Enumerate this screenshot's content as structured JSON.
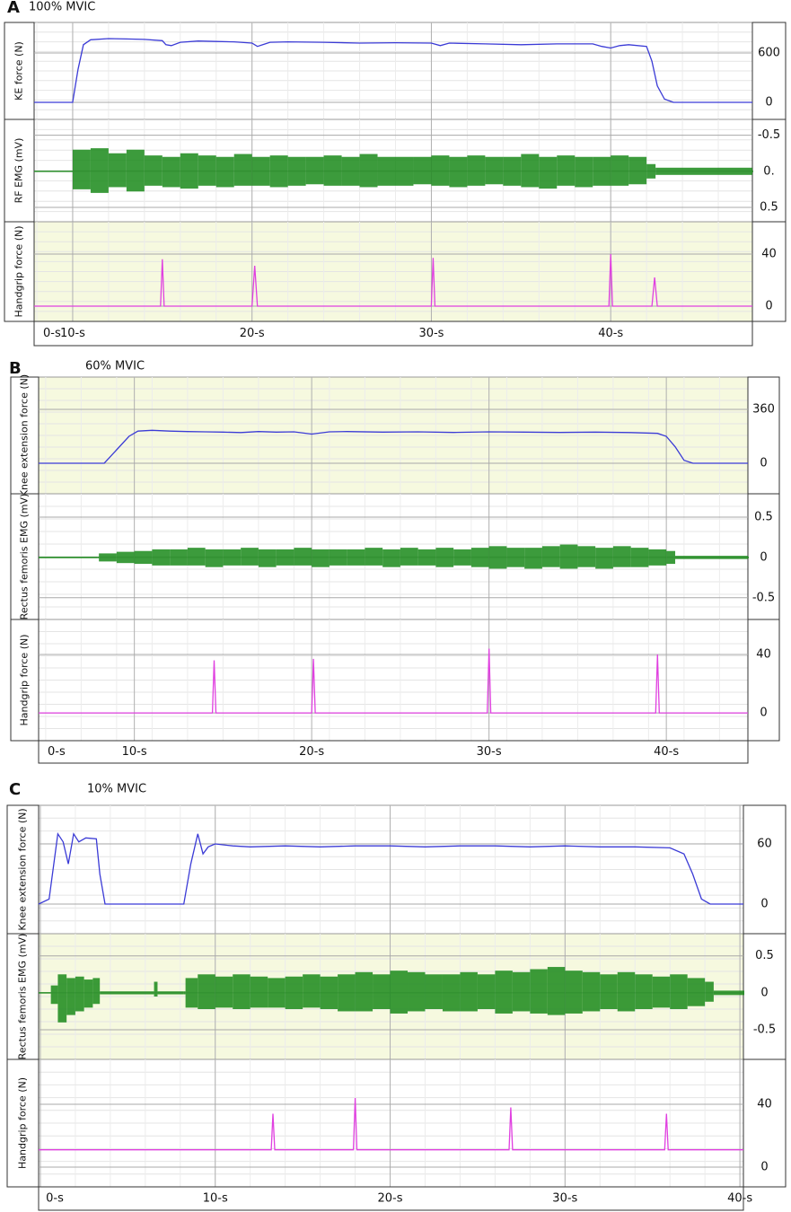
{
  "chart_data": [
    {
      "type": "line",
      "label": "A",
      "title": "100% MVIC",
      "x_start_label": "0-s",
      "xlim": [
        7.85,
        47.9
      ],
      "xticks": [
        {
          "value": 10,
          "label": "10-s"
        },
        {
          "value": 20,
          "label": "20-s"
        },
        {
          "value": 30,
          "label": "30-s"
        },
        {
          "value": 40,
          "label": "40-s"
        }
      ],
      "grid": true,
      "series": [
        {
          "name": "KE force (N)",
          "color": "#3b3bd6",
          "ylim": [
            -207,
            971
          ],
          "yticks": [
            0,
            600
          ],
          "x": [
            7.85,
            10,
            10.3,
            10.6,
            11,
            12,
            13,
            14,
            15,
            15.2,
            15.5,
            16,
            17,
            18,
            19,
            20,
            20.3,
            20.6,
            21,
            22,
            24,
            26,
            28,
            30,
            30.5,
            31,
            33,
            35,
            37,
            39,
            39.5,
            40,
            40.5,
            41,
            42,
            42.3,
            42.6,
            43,
            43.5,
            47.9
          ],
          "values": [
            0,
            0,
            400,
            700,
            760,
            775,
            770,
            765,
            750,
            700,
            690,
            730,
            745,
            740,
            735,
            720,
            680,
            700,
            730,
            735,
            730,
            720,
            725,
            720,
            690,
            720,
            710,
            700,
            710,
            710,
            680,
            660,
            690,
            700,
            680,
            500,
            200,
            40,
            0,
            0
          ]
        },
        {
          "name": "RF EMG (mV)",
          "color": "#1a8a1a",
          "ylim": [
            0.7,
            -0.72
          ],
          "yticks": [
            -0.5,
            {
              "value": 0,
              "label": "0."
            },
            0.5
          ],
          "x": [
            7.85,
            9.9,
            10,
            11,
            12,
            13,
            14,
            15,
            16,
            17,
            18,
            19,
            20,
            21,
            22,
            23,
            24,
            25,
            26,
            27,
            28,
            29,
            30,
            31,
            32,
            33,
            34,
            35,
            36,
            37,
            38,
            39,
            40,
            41,
            42,
            42.5,
            47.9
          ],
          "values": [
            0.01,
            0.01,
            0.25,
            0.3,
            0.22,
            0.28,
            0.2,
            0.22,
            0.24,
            0.2,
            0.22,
            0.2,
            0.2,
            0.22,
            0.2,
            0.18,
            0.2,
            0.2,
            0.22,
            0.2,
            0.2,
            0.18,
            0.2,
            0.22,
            0.2,
            0.18,
            0.2,
            0.22,
            0.24,
            0.2,
            0.22,
            0.2,
            0.2,
            0.18,
            0.1,
            0.05,
            0.01
          ],
          "lower": [
            -0.01,
            -0.01,
            -0.3,
            -0.32,
            -0.25,
            -0.3,
            -0.22,
            -0.2,
            -0.25,
            -0.22,
            -0.2,
            -0.24,
            -0.2,
            -0.22,
            -0.2,
            -0.2,
            -0.22,
            -0.2,
            -0.24,
            -0.2,
            -0.2,
            -0.2,
            -0.22,
            -0.2,
            -0.22,
            -0.2,
            -0.2,
            -0.24,
            -0.2,
            -0.22,
            -0.2,
            -0.2,
            -0.22,
            -0.2,
            -0.1,
            -0.05,
            -0.01
          ]
        },
        {
          "name": "Handgrip force (N)",
          "color": "#e040e0",
          "ylim": [
            -11.7,
            64.8
          ],
          "yticks": [
            0,
            40
          ],
          "x": [
            7.85,
            14.9,
            15,
            15.1,
            20.0,
            20.15,
            20.3,
            30.0,
            30.1,
            30.2,
            39.9,
            40.0,
            40.1,
            42.3,
            42.45,
            42.6,
            47.9
          ],
          "values": [
            0,
            0,
            36,
            0,
            0,
            31,
            0,
            0,
            37,
            0,
            0,
            40,
            0,
            0,
            22,
            0,
            0
          ]
        }
      ]
    },
    {
      "type": "line",
      "label": "B",
      "title": "60% MVIC",
      "x_start_label": "0-s",
      "xlim": [
        4.6,
        44.6
      ],
      "xticks": [
        {
          "value": 10,
          "label": "10-s"
        },
        {
          "value": 20,
          "label": "20-s"
        },
        {
          "value": 30,
          "label": "30-s"
        },
        {
          "value": 40,
          "label": "40-s"
        }
      ],
      "grid": true,
      "series": [
        {
          "name": "Knee extension force (N)",
          "color": "#3b3bd6",
          "ylim": [
            -204,
            576
          ],
          "yticks": [
            0,
            360
          ],
          "x": [
            4.6,
            8.3,
            9,
            9.7,
            10.2,
            11,
            12,
            13,
            14,
            15,
            16,
            17,
            18,
            19,
            20,
            21,
            22,
            24,
            26,
            28,
            30,
            32,
            34,
            36,
            38,
            39.5,
            40,
            40.5,
            41,
            41.5,
            44.6
          ],
          "values": [
            0,
            0,
            90,
            180,
            215,
            220,
            215,
            212,
            210,
            208,
            205,
            212,
            208,
            210,
            195,
            210,
            212,
            208,
            210,
            206,
            210,
            208,
            206,
            208,
            205,
            200,
            180,
            110,
            20,
            0,
            0
          ]
        },
        {
          "name": "Rectus femoris EMG (mV)",
          "color": "#1a8a1a",
          "ylim": [
            -0.77,
            0.79
          ],
          "yticks": [
            -0.5,
            0,
            0.5
          ],
          "x": [
            4.6,
            7.9,
            8,
            9,
            10,
            11,
            12,
            13,
            14,
            15,
            16,
            17,
            18,
            19,
            20,
            21,
            22,
            23,
            24,
            25,
            26,
            27,
            28,
            29,
            30,
            31,
            32,
            33,
            34,
            35,
            36,
            37,
            38,
            39,
            40,
            40.5,
            44.6
          ],
          "values": [
            0.01,
            0.01,
            0.05,
            0.07,
            0.08,
            0.1,
            0.1,
            0.12,
            0.1,
            0.1,
            0.12,
            0.1,
            0.1,
            0.12,
            0.1,
            0.1,
            0.1,
            0.12,
            0.1,
            0.12,
            0.1,
            0.12,
            0.1,
            0.12,
            0.14,
            0.12,
            0.12,
            0.14,
            0.16,
            0.14,
            0.12,
            0.14,
            0.12,
            0.1,
            0.08,
            0.02,
            0.01
          ],
          "lower": [
            -0.01,
            -0.01,
            -0.05,
            -0.07,
            -0.08,
            -0.1,
            -0.1,
            -0.1,
            -0.12,
            -0.1,
            -0.1,
            -0.12,
            -0.1,
            -0.1,
            -0.12,
            -0.1,
            -0.1,
            -0.1,
            -0.12,
            -0.1,
            -0.1,
            -0.12,
            -0.1,
            -0.12,
            -0.14,
            -0.12,
            -0.14,
            -0.12,
            -0.14,
            -0.12,
            -0.14,
            -0.12,
            -0.12,
            -0.1,
            -0.08,
            -0.02,
            -0.01
          ]
        },
        {
          "name": "Handgrip force (N)",
          "color": "#e040e0",
          "ylim": [
            -19,
            64
          ],
          "yticks": [
            0,
            40
          ],
          "x": [
            4.6,
            14.4,
            14.5,
            14.6,
            20.0,
            20.1,
            20.2,
            29.9,
            30.0,
            30.1,
            39.4,
            39.5,
            39.6,
            44.6
          ],
          "values": [
            0,
            0,
            36,
            0,
            0,
            37,
            0,
            0,
            44,
            0,
            0,
            40,
            0,
            0
          ]
        }
      ]
    },
    {
      "type": "line",
      "label": "C",
      "title": "10% MVIC",
      "xlim": [
        -0.1,
        40.2
      ],
      "xticks": [
        {
          "value": 0,
          "label": "0-s"
        },
        {
          "value": 10,
          "label": "10-s"
        },
        {
          "value": 20,
          "label": "20-s"
        },
        {
          "value": 30,
          "label": "30-s"
        },
        {
          "value": 40,
          "label": "40-s"
        }
      ],
      "grid": true,
      "series": [
        {
          "name": "Knee extension force (N)",
          "color": "#3b3bd6",
          "ylim": [
            -29.6,
            98.5
          ],
          "yticks": [
            0,
            60
          ],
          "x": [
            -0.1,
            0.5,
            1.0,
            1.3,
            1.6,
            1.9,
            2.2,
            2.6,
            3.2,
            3.4,
            3.7,
            6,
            8.2,
            8.6,
            9.0,
            9.3,
            9.6,
            10,
            11,
            12,
            14,
            16,
            18,
            20,
            22,
            24,
            26,
            28,
            30,
            32,
            34,
            36,
            36.8,
            37.3,
            37.8,
            38.3,
            40.2
          ],
          "values": [
            0,
            5,
            70,
            62,
            40,
            70,
            62,
            66,
            65,
            30,
            0,
            0,
            0,
            40,
            70,
            50,
            57,
            60,
            58,
            57,
            58,
            57,
            58,
            58,
            57,
            58,
            58,
            57,
            58,
            57,
            57,
            56,
            50,
            30,
            5,
            0,
            0
          ]
        },
        {
          "name": "Rectus femoris EMG (mV)",
          "color": "#1a8a1a",
          "ylim": [
            -0.9,
            0.8
          ],
          "yticks": [
            -0.5,
            0,
            0.5
          ],
          "x": [
            -0.1,
            0.6,
            1,
            1.5,
            2,
            2.5,
            3,
            3.4,
            6.5,
            6.7,
            8.2,
            8.3,
            9,
            10,
            11,
            12,
            13,
            14,
            15,
            16,
            17,
            18,
            19,
            20,
            21,
            22,
            23,
            24,
            25,
            26,
            27,
            28,
            29,
            30,
            31,
            32,
            33,
            34,
            35,
            36,
            37,
            38,
            38.5,
            40.2
          ],
          "values": [
            0.01,
            0.1,
            0.25,
            0.2,
            0.22,
            0.18,
            0.2,
            0.02,
            0.15,
            0.02,
            0.02,
            0.2,
            0.25,
            0.22,
            0.25,
            0.22,
            0.2,
            0.22,
            0.25,
            0.22,
            0.25,
            0.28,
            0.25,
            0.3,
            0.28,
            0.25,
            0.25,
            0.28,
            0.25,
            0.3,
            0.28,
            0.32,
            0.35,
            0.3,
            0.28,
            0.25,
            0.28,
            0.25,
            0.22,
            0.25,
            0.2,
            0.15,
            0.03,
            0.03
          ],
          "lower": [
            -0.01,
            -0.15,
            -0.4,
            -0.3,
            -0.25,
            -0.2,
            -0.15,
            -0.02,
            -0.05,
            -0.02,
            -0.02,
            -0.2,
            -0.22,
            -0.2,
            -0.22,
            -0.2,
            -0.2,
            -0.22,
            -0.2,
            -0.22,
            -0.25,
            -0.25,
            -0.22,
            -0.28,
            -0.25,
            -0.22,
            -0.25,
            -0.25,
            -0.22,
            -0.28,
            -0.25,
            -0.28,
            -0.3,
            -0.28,
            -0.25,
            -0.22,
            -0.25,
            -0.22,
            -0.2,
            -0.22,
            -0.18,
            -0.12,
            -0.03,
            -0.03
          ]
        },
        {
          "name": "Handgrip force (N)",
          "color": "#e040e0",
          "ylim": [
            -12.6,
            68.6
          ],
          "yticks": [
            0,
            40
          ],
          "x": [
            -0.1,
            13.2,
            13.3,
            13.4,
            17.9,
            18.0,
            18.1,
            26.8,
            26.9,
            27.0,
            35.7,
            35.8,
            35.9,
            40.2
          ],
          "values": [
            11,
            11,
            34,
            11,
            11,
            44,
            11,
            11,
            38,
            11,
            11,
            34,
            11,
            11
          ]
        }
      ]
    }
  ]
}
